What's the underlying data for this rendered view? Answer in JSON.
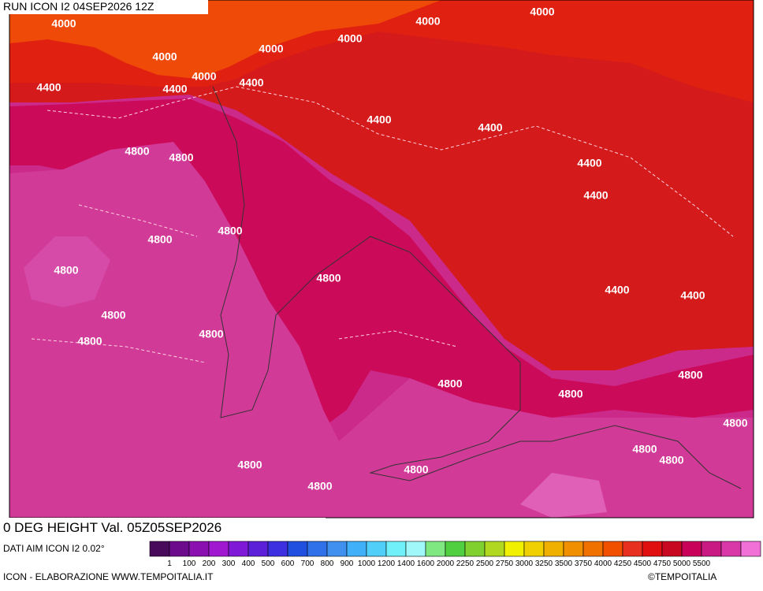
{
  "header": {
    "title": "RUN ICON I2 04SEP2026 12Z"
  },
  "contours": [
    "4000",
    "4000",
    "4000",
    "4000",
    "4000",
    "4000",
    "4000",
    "4400",
    "4400",
    "4400",
    "4400",
    "4400",
    "4400",
    "4400",
    "4400",
    "4400",
    "4800",
    "4800",
    "4800",
    "4800",
    "4800",
    "4800",
    "4800",
    "4800",
    "4800",
    "4800",
    "4800",
    "4800",
    "4800",
    "4800",
    "4800",
    "4800",
    "4800",
    "4800"
  ],
  "footer": {
    "title": "0 DEG HEIGHT Val. 05Z05SEP2026",
    "source": "DATI AIM ICON I2 0.02°",
    "credit": "ICON - ELABORAZIONE WWW.TEMPOITALIA.IT",
    "copyright": "©TEMPOITALIA"
  },
  "legend": {
    "labels": [
      "1",
      "100",
      "200",
      "300",
      "400",
      "500",
      "600",
      "700",
      "800",
      "900",
      "1000",
      "1200",
      "1400",
      "1600",
      "2000",
      "2250",
      "2500",
      "2750",
      "3000",
      "3250",
      "3500",
      "3750",
      "4000",
      "4250",
      "4500",
      "4750",
      "5000",
      "5500"
    ],
    "colors": [
      "#4a0a5c",
      "#6c0c8c",
      "#8a10b0",
      "#a018d0",
      "#8018d8",
      "#5c20d8",
      "#3c30e0",
      "#2050e0",
      "#3070e8",
      "#4090f0",
      "#40b0f8",
      "#50d0f8",
      "#70f0f8",
      "#a0f8f8",
      "#80e880",
      "#50d040",
      "#80d030",
      "#b0d820",
      "#f0f000",
      "#f0d000",
      "#f0b000",
      "#f09000",
      "#f07000",
      "#f05000",
      "#e83020",
      "#e01010",
      "#c80820",
      "#c8005a",
      "#c81a82",
      "#d838a8",
      "#f070d8"
    ]
  }
}
